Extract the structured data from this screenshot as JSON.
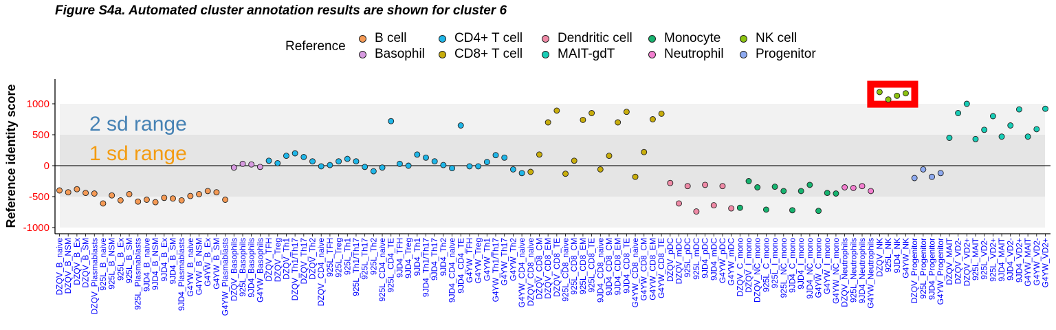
{
  "chart_data": {
    "type": "scatter",
    "title": "Figure S4a. Automated cluster annotation results are shown for cluster 6",
    "ylabel": "Reference identity score",
    "xlabel": "",
    "ylim": [
      -1100,
      1400
    ],
    "yticks": [
      -1000,
      -500,
      0,
      500,
      1000
    ],
    "bands": [
      {
        "label": "2 sd range",
        "from": -1000,
        "to": 1000,
        "fill": "#f2f2f2",
        "color": "#4682b4"
      },
      {
        "label": "1 sd range",
        "from": -500,
        "to": 500,
        "fill": "#e5e5e5",
        "color": "#f39c12"
      }
    ],
    "legend": {
      "title": "Reference",
      "placement": "top",
      "entries": [
        {
          "name": "B cell",
          "color": "#f59a55"
        },
        {
          "name": "Basophil",
          "color": "#d79ae0"
        },
        {
          "name": "CD4+ T cell",
          "color": "#1fb6e8"
        },
        {
          "name": "CD8+ T cell",
          "color": "#c8ad0c"
        },
        {
          "name": "Dendritic cell",
          "color": "#ef8aa6"
        },
        {
          "name": "MAIT-gdT",
          "color": "#18cdb6"
        },
        {
          "name": "Monocyte",
          "color": "#16b36f"
        },
        {
          "name": "Neutrophil",
          "color": "#f27fcf"
        },
        {
          "name": "NK cell",
          "color": "#8cc410"
        },
        {
          "name": "Progenitor",
          "color": "#8eaaf0"
        }
      ]
    },
    "highlight": {
      "from": 0,
      "to": 4,
      "color": "#ff0000",
      "ymin": 1060,
      "ymax": 1250
    },
    "points": [
      {
        "label": "DZQV_B_naive",
        "group": "B cell",
        "y": -400
      },
      {
        "label": "DZQV_B_NSM",
        "group": "B cell",
        "y": -430
      },
      {
        "label": "DZQV_B_Ex",
        "group": "B cell",
        "y": -380
      },
      {
        "label": "DZQV_B_SM",
        "group": "B cell",
        "y": -440
      },
      {
        "label": "DZQV_Plasmablasts",
        "group": "B cell",
        "y": -450
      },
      {
        "label": "925L_B_naive",
        "group": "B cell",
        "y": -610
      },
      {
        "label": "925L_B_NSM",
        "group": "B cell",
        "y": -480
      },
      {
        "label": "925L_B_Ex",
        "group": "B cell",
        "y": -560
      },
      {
        "label": "925L_B_SM",
        "group": "B cell",
        "y": -460
      },
      {
        "label": "925L_Plasmablasts",
        "group": "B cell",
        "y": -580
      },
      {
        "label": "9JD4_B_naive",
        "group": "B cell",
        "y": -550
      },
      {
        "label": "9JD4_B_NSM",
        "group": "B cell",
        "y": -590
      },
      {
        "label": "9JD4_B_Ex",
        "group": "B cell",
        "y": -520
      },
      {
        "label": "9JD4_B_SM",
        "group": "B cell",
        "y": -530
      },
      {
        "label": "9JD4_Plasmablasts",
        "group": "B cell",
        "y": -560
      },
      {
        "label": "G4YW_B_naive",
        "group": "B cell",
        "y": -490
      },
      {
        "label": "G4YW_B_NSM",
        "group": "B cell",
        "y": -460
      },
      {
        "label": "G4YW_B_Ex",
        "group": "B cell",
        "y": -410
      },
      {
        "label": "G4YW_B_SM",
        "group": "B cell",
        "y": -430
      },
      {
        "label": "G4YW_Plasmablasts",
        "group": "B cell",
        "y": -550
      },
      {
        "label": "DZQV_Basophils",
        "group": "Basophil",
        "y": -30
      },
      {
        "label": "925L_Basophils",
        "group": "Basophil",
        "y": 30
      },
      {
        "label": "9JD4_Basophils",
        "group": "Basophil",
        "y": 20
      },
      {
        "label": "G4YW_Basophils",
        "group": "Basophil",
        "y": -20
      },
      {
        "label": "DZQV_TFH",
        "group": "CD4+ T cell",
        "y": 80
      },
      {
        "label": "DZQV_Treg",
        "group": "CD4+ T cell",
        "y": 40
      },
      {
        "label": "DZQV_Th1",
        "group": "CD4+ T cell",
        "y": 160
      },
      {
        "label": "DZQV_Th1/Th17",
        "group": "CD4+ T cell",
        "y": 200
      },
      {
        "label": "DZQV_Th17",
        "group": "CD4+ T cell",
        "y": 140
      },
      {
        "label": "DZQV_Th2",
        "group": "CD4+ T cell",
        "y": 70
      },
      {
        "label": "DZQV_CD4_naive",
        "group": "CD4+ T cell",
        "y": -10
      },
      {
        "label": "925L_TFH",
        "group": "CD4+ T cell",
        "y": 10
      },
      {
        "label": "925L_Treg",
        "group": "CD4+ T cell",
        "y": 70
      },
      {
        "label": "925L_Th1",
        "group": "CD4+ T cell",
        "y": 110
      },
      {
        "label": "925L_Th1/Th17",
        "group": "CD4+ T cell",
        "y": 70
      },
      {
        "label": "925L_Th17",
        "group": "CD4+ T cell",
        "y": -20
      },
      {
        "label": "925L_Th2",
        "group": "CD4+ T cell",
        "y": -90
      },
      {
        "label": "925L_CD4_naive",
        "group": "CD4+ T cell",
        "y": -30
      },
      {
        "label": "925L_CD4_TE",
        "group": "CD4+ T cell",
        "y": 720
      },
      {
        "label": "9JD4_TFH",
        "group": "CD4+ T cell",
        "y": 30
      },
      {
        "label": "9JD4_Treg",
        "group": "CD4+ T cell",
        "y": 0
      },
      {
        "label": "9JD4_Th1",
        "group": "CD4+ T cell",
        "y": 180
      },
      {
        "label": "9JD4_Th1/Th17",
        "group": "CD4+ T cell",
        "y": 130
      },
      {
        "label": "9JD4_Th17",
        "group": "CD4+ T cell",
        "y": 70
      },
      {
        "label": "9JD4_Th2",
        "group": "CD4+ T cell",
        "y": 10
      },
      {
        "label": "9JD4_CD4_naive",
        "group": "CD4+ T cell",
        "y": -40
      },
      {
        "label": "9JD4_CD4_TE",
        "group": "CD4+ T cell",
        "y": 650
      },
      {
        "label": "G4YW_TFH",
        "group": "CD4+ T cell",
        "y": -10
      },
      {
        "label": "G4YW_Treg",
        "group": "CD4+ T cell",
        "y": -10
      },
      {
        "label": "G4YW_Th1",
        "group": "CD4+ T cell",
        "y": 60
      },
      {
        "label": "G4YW_Th1/Th17",
        "group": "CD4+ T cell",
        "y": 170
      },
      {
        "label": "G4YW_Th17",
        "group": "CD4+ T cell",
        "y": 130
      },
      {
        "label": "G4YW_Th2",
        "group": "CD4+ T cell",
        "y": -60
      },
      {
        "label": "G4YW_CD4_naive",
        "group": "CD4+ T cell",
        "y": -120
      },
      {
        "label": "DZQV_CD8_naive",
        "group": "CD8+ T cell",
        "y": -100
      },
      {
        "label": "DZQV_CD8_CM",
        "group": "CD8+ T cell",
        "y": 180
      },
      {
        "label": "DZQV_CD8_EM",
        "group": "CD8+ T cell",
        "y": 700
      },
      {
        "label": "DZQV_CD8_TE",
        "group": "CD8+ T cell",
        "y": 890
      },
      {
        "label": "925L_CD8_naive",
        "group": "CD8+ T cell",
        "y": -130
      },
      {
        "label": "925L_CD8_CM",
        "group": "CD8+ T cell",
        "y": 80
      },
      {
        "label": "925L_CD8_EM",
        "group": "CD8+ T cell",
        "y": 740
      },
      {
        "label": "925L_CD8_TE",
        "group": "CD8+ T cell",
        "y": 850
      },
      {
        "label": "9JD4_CD8_naive",
        "group": "CD8+ T cell",
        "y": -60
      },
      {
        "label": "9JD4_CD8_CM",
        "group": "CD8+ T cell",
        "y": 160
      },
      {
        "label": "9JD4_CD8_EM",
        "group": "CD8+ T cell",
        "y": 700
      },
      {
        "label": "9JD4_CD8_TE",
        "group": "CD8+ T cell",
        "y": 870
      },
      {
        "label": "G4YW_CD8_naive",
        "group": "CD8+ T cell",
        "y": -180
      },
      {
        "label": "G4YW_CD8_CM",
        "group": "CD8+ T cell",
        "y": 220
      },
      {
        "label": "G4YW_CD8_EM",
        "group": "CD8+ T cell",
        "y": 750
      },
      {
        "label": "G4YW_CD8_TE",
        "group": "CD8+ T cell",
        "y": 840
      },
      {
        "label": "DZQV_pDC",
        "group": "Dendritic cell",
        "y": -280
      },
      {
        "label": "DZQV_mDC",
        "group": "Dendritic cell",
        "y": -610
      },
      {
        "label": "925L_pDC",
        "group": "Dendritic cell",
        "y": -330
      },
      {
        "label": "925L_mDC",
        "group": "Dendritic cell",
        "y": -740
      },
      {
        "label": "9JD4_pDC",
        "group": "Dendritic cell",
        "y": -310
      },
      {
        "label": "9JD4_mDC",
        "group": "Dendritic cell",
        "y": -640
      },
      {
        "label": "G4YW_pDC",
        "group": "Dendritic cell",
        "y": -330
      },
      {
        "label": "G4YW_mDC",
        "group": "Dendritic cell",
        "y": -690
      },
      {
        "label": "DZQV_C_mono",
        "group": "Monocyte",
        "y": -680
      },
      {
        "label": "DZQV_I_mono",
        "group": "Monocyte",
        "y": -250
      },
      {
        "label": "DZQV_NC_mono",
        "group": "Monocyte",
        "y": -350
      },
      {
        "label": "925L_C_mono",
        "group": "Monocyte",
        "y": -710
      },
      {
        "label": "925L_I_mono",
        "group": "Monocyte",
        "y": -340
      },
      {
        "label": "925L_NC_mono",
        "group": "Monocyte",
        "y": -410
      },
      {
        "label": "9JD4_C_mono",
        "group": "Monocyte",
        "y": -720
      },
      {
        "label": "9JD4_I_mono",
        "group": "Monocyte",
        "y": -410
      },
      {
        "label": "9JD4_NC_mono",
        "group": "Monocyte",
        "y": -310
      },
      {
        "label": "G4YW_C_mono",
        "group": "Monocyte",
        "y": -730
      },
      {
        "label": "G4YW_I_mono",
        "group": "Monocyte",
        "y": -440
      },
      {
        "label": "G4YW_NC_mono",
        "group": "Monocyte",
        "y": -450
      },
      {
        "label": "DZQV_Neutrophils",
        "group": "Neutrophil",
        "y": -350
      },
      {
        "label": "925L_Neutrophils",
        "group": "Neutrophil",
        "y": -360
      },
      {
        "label": "9JD4_Neutrophils",
        "group": "Neutrophil",
        "y": -330
      },
      {
        "label": "G4YW_Neutrophils",
        "group": "Neutrophil",
        "y": -410
      },
      {
        "label": "DZQV_NK",
        "group": "NK cell",
        "y": 1190
      },
      {
        "label": "925L_NK",
        "group": "NK cell",
        "y": 1070
      },
      {
        "label": "9JD4_NK",
        "group": "NK cell",
        "y": 1130
      },
      {
        "label": "G4YW_NK",
        "group": "NK cell",
        "y": 1170
      },
      {
        "label": "DZQV_Progenitor",
        "group": "Progenitor",
        "y": -200
      },
      {
        "label": "925L_Progenitor",
        "group": "Progenitor",
        "y": -60
      },
      {
        "label": "9JD4_Progenitor",
        "group": "Progenitor",
        "y": -180
      },
      {
        "label": "G4YW_Progenitor",
        "group": "Progenitor",
        "y": -120
      },
      {
        "label": "DZQV_MAIT",
        "group": "MAIT-gdT",
        "y": 450
      },
      {
        "label": "DZQV_VD2-",
        "group": "MAIT-gdT",
        "y": 850
      },
      {
        "label": "DZQV_VD2+",
        "group": "MAIT-gdT",
        "y": 1000
      },
      {
        "label": "925L_MAIT",
        "group": "MAIT-gdT",
        "y": 430
      },
      {
        "label": "925L_VD2-",
        "group": "MAIT-gdT",
        "y": 580
      },
      {
        "label": "925L_VD2+",
        "group": "MAIT-gdT",
        "y": 800
      },
      {
        "label": "9JD4_MAIT",
        "group": "MAIT-gdT",
        "y": 470
      },
      {
        "label": "9JD4_VD2-",
        "group": "MAIT-gdT",
        "y": 650
      },
      {
        "label": "9JD4_VD2+",
        "group": "MAIT-gdT",
        "y": 910
      },
      {
        "label": "G4YW_MAIT",
        "group": "MAIT-gdT",
        "y": 470
      },
      {
        "label": "G4YW_VD2-",
        "group": "MAIT-gdT",
        "y": 590
      },
      {
        "label": "G4YW_VD2+",
        "group": "MAIT-gdT",
        "y": 920
      }
    ]
  }
}
